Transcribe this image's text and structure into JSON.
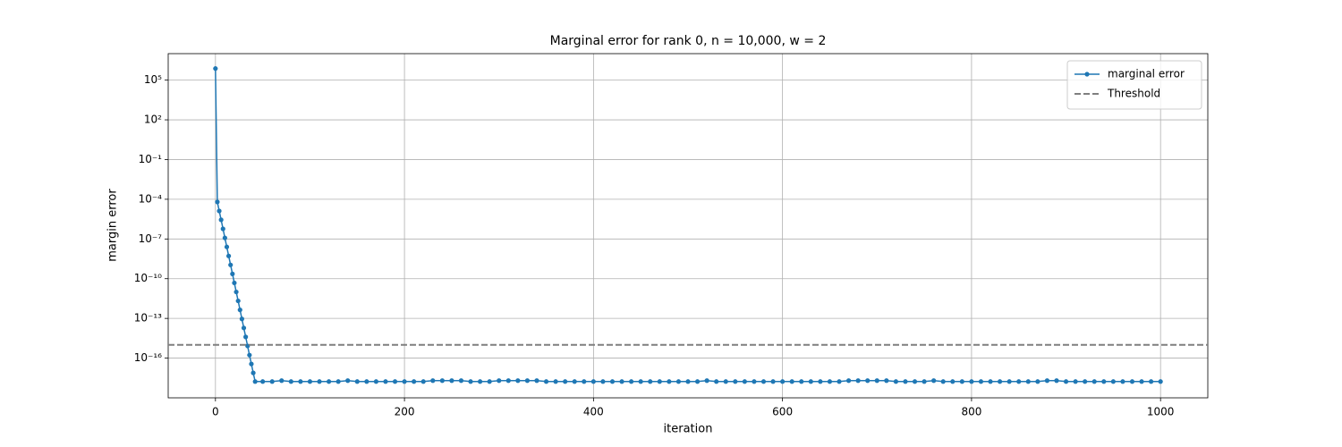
{
  "chart_data": {
    "type": "line",
    "title": "Marginal error for rank 0, n = 10,000, w = 2",
    "x_label": "iteration",
    "y_label": "margin error",
    "x": [
      0,
      2,
      4,
      6,
      8,
      10,
      12,
      14,
      16,
      18,
      20,
      22,
      24,
      26,
      28,
      30,
      32,
      34,
      36,
      38,
      40,
      42,
      50,
      60,
      70,
      80,
      90,
      100,
      110,
      120,
      130,
      140,
      150,
      160,
      170,
      180,
      190,
      200,
      210,
      220,
      230,
      240,
      250,
      260,
      270,
      280,
      290,
      300,
      310,
      320,
      330,
      340,
      350,
      360,
      370,
      380,
      390,
      400,
      410,
      420,
      430,
      440,
      450,
      460,
      470,
      480,
      490,
      500,
      510,
      520,
      530,
      540,
      550,
      560,
      570,
      580,
      590,
      600,
      610,
      620,
      630,
      640,
      650,
      660,
      670,
      680,
      690,
      700,
      710,
      720,
      730,
      740,
      750,
      760,
      770,
      780,
      790,
      800,
      810,
      820,
      830,
      840,
      850,
      860,
      870,
      880,
      890,
      900,
      910,
      920,
      930,
      940,
      950,
      960,
      970,
      980,
      990,
      1000
    ],
    "series": [
      {
        "name": "marginal error",
        "color": "#1f77b4",
        "values": [
          750000.0,
          6.3e-05,
          1.3e-05,
          2.8e-06,
          5.8e-07,
          1.2e-07,
          2.5e-08,
          5.2e-09,
          1.1e-09,
          2.3e-10,
          4.8e-11,
          1e-11,
          2.1e-12,
          4.4e-13,
          9.1e-14,
          1.9e-14,
          4e-15,
          8.3e-16,
          1.7e-16,
          3.6e-17,
          7.6e-18,
          1.7e-18,
          1.7e-18,
          1.7e-18,
          2e-18,
          1.7e-18,
          1.7e-18,
          1.7e-18,
          1.7e-18,
          1.7e-18,
          1.7e-18,
          2e-18,
          1.7e-18,
          1.7e-18,
          1.7e-18,
          1.7e-18,
          1.7e-18,
          1.7e-18,
          1.7e-18,
          1.7e-18,
          2e-18,
          2e-18,
          2e-18,
          2e-18,
          1.7e-18,
          1.7e-18,
          1.7e-18,
          2e-18,
          2e-18,
          2e-18,
          2e-18,
          2e-18,
          1.7e-18,
          1.7e-18,
          1.7e-18,
          1.7e-18,
          1.7e-18,
          1.7e-18,
          1.7e-18,
          1.7e-18,
          1.7e-18,
          1.7e-18,
          1.7e-18,
          1.7e-18,
          1.7e-18,
          1.7e-18,
          1.7e-18,
          1.7e-18,
          1.7e-18,
          2e-18,
          1.7e-18,
          1.7e-18,
          1.7e-18,
          1.7e-18,
          1.7e-18,
          1.7e-18,
          1.7e-18,
          1.7e-18,
          1.7e-18,
          1.7e-18,
          1.7e-18,
          1.7e-18,
          1.7e-18,
          1.7e-18,
          2e-18,
          2e-18,
          2e-18,
          2e-18,
          2e-18,
          1.7e-18,
          1.7e-18,
          1.7e-18,
          1.7e-18,
          2e-18,
          1.7e-18,
          1.7e-18,
          1.7e-18,
          1.7e-18,
          1.7e-18,
          1.7e-18,
          1.7e-18,
          1.7e-18,
          1.7e-18,
          1.7e-18,
          1.7e-18,
          2e-18,
          2e-18,
          1.7e-18,
          1.7e-18,
          1.7e-18,
          1.7e-18,
          1.7e-18,
          1.7e-18,
          1.7e-18,
          1.7e-18,
          1.7e-18,
          1.7e-18,
          1.7e-18
        ]
      }
    ],
    "hlines": [
      {
        "name": "Threshold",
        "value": 1e-15,
        "color": "#7f7f7f",
        "linestyle": "dashed"
      }
    ],
    "xlim": [
      -50,
      1050
    ],
    "xticks": [
      0,
      200,
      400,
      600,
      800,
      1000
    ],
    "ylim": [
      1e-19,
      10000000.0
    ],
    "yscale": "log",
    "yticks": [
      {
        "value": 100000.0,
        "label": "10⁵"
      },
      {
        "value": 100,
        "label": "10²"
      },
      {
        "value": 0.1,
        "label": "10⁻¹"
      },
      {
        "value": 0.0001,
        "label": "10⁻⁴"
      },
      {
        "value": 1e-07,
        "label": "10⁻⁷"
      },
      {
        "value": 1e-10,
        "label": "10⁻¹⁰"
      },
      {
        "value": 1e-13,
        "label": "10⁻¹³"
      },
      {
        "value": 1e-16,
        "label": "10⁻¹⁶"
      }
    ],
    "grid": true,
    "legend": "upper right"
  }
}
